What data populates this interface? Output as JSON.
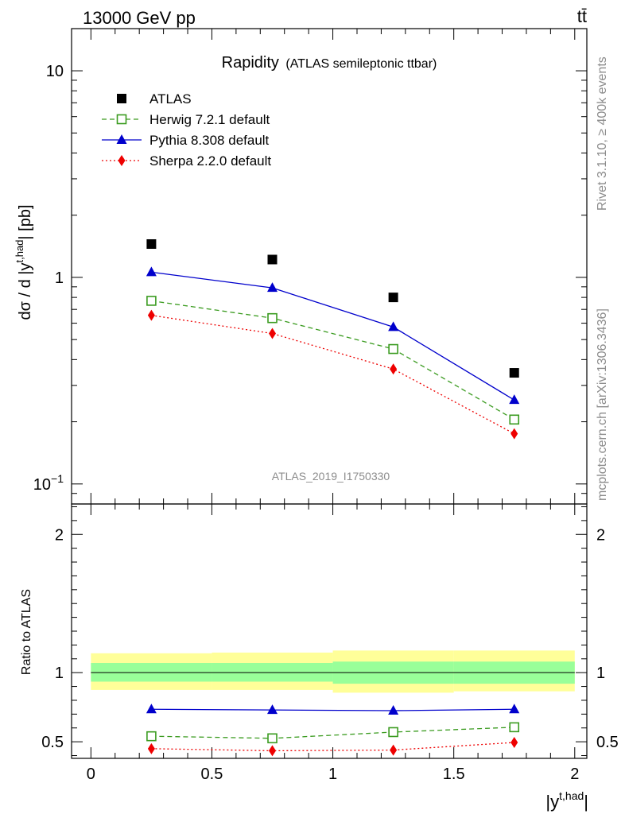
{
  "header": {
    "left": "13000 GeV pp",
    "right": "tt̄"
  },
  "side_labels": {
    "rivet": "Rivet 3.1.10, ≥ 400k events",
    "mcplots": "mcplots.cern.ch [arXiv:1306.3436]"
  },
  "watermark": "ATLAS_2019_I1750330",
  "chart_data": [
    {
      "type": "scatter",
      "title_main": "Rapidity",
      "title_sub": "(ATLAS semileptonic ttbar)",
      "ylabel": "dσ / d |y^{t,had}| [pb]",
      "yscale": "log",
      "ylim": [
        0.08,
        16
      ],
      "yticks": [
        {
          "value": 0.1,
          "base": "10",
          "exp": "−1"
        },
        {
          "value": 1,
          "label": "1"
        },
        {
          "value": 10,
          "label": "10"
        }
      ],
      "x": [
        0.25,
        0.75,
        1.25,
        1.75
      ],
      "series": [
        {
          "name": "ATLAS",
          "marker": "square-filled",
          "color": "#000000",
          "line": "none",
          "values": [
            1.45,
            1.22,
            0.8,
            0.345
          ]
        },
        {
          "name": "Herwig 7.2.1 default",
          "marker": "square-open",
          "color": "#3a9b1f",
          "line": "dashed",
          "values": [
            0.77,
            0.635,
            0.45,
            0.205
          ]
        },
        {
          "name": "Pythia 8.308 default",
          "marker": "triangle",
          "color": "#0000cc",
          "line": "solid",
          "values": [
            1.06,
            0.89,
            0.575,
            0.255
          ]
        },
        {
          "name": "Sherpa 2.2.0 default",
          "marker": "diamond",
          "color": "#ee0000",
          "line": "dotted",
          "values": [
            0.655,
            0.535,
            0.36,
            0.175
          ]
        }
      ],
      "legend_position": "top-left"
    },
    {
      "type": "line",
      "ylabel": "Ratio to ATLAS",
      "xlabel": "|y^{t,had}|",
      "xlim": [
        -0.08,
        2.05
      ],
      "ylim": [
        0.38,
        2.22
      ],
      "xticks": [
        "0",
        "0.5",
        "1",
        "1.5",
        "2"
      ],
      "xtick_values": [
        0,
        0.5,
        1,
        1.5,
        2
      ],
      "yticks": [
        "0.5",
        "1",
        "2"
      ],
      "ytick_values": [
        0.5,
        1,
        2
      ],
      "bands": {
        "bins": [
          [
            0,
            0.5
          ],
          [
            0.5,
            1
          ],
          [
            1,
            1.5
          ],
          [
            1.5,
            2
          ]
        ],
        "inner": [
          [
            0.935,
            1.07
          ],
          [
            0.935,
            1.07
          ],
          [
            0.92,
            1.08
          ],
          [
            0.92,
            1.08
          ]
        ],
        "outer": [
          [
            0.875,
            1.14
          ],
          [
            0.875,
            1.145
          ],
          [
            0.855,
            1.16
          ],
          [
            0.865,
            1.16
          ]
        ],
        "inner_color": "#99ff99",
        "outer_color": "#ffff99"
      },
      "x": [
        0.25,
        0.75,
        1.25,
        1.75
      ],
      "series": [
        {
          "name": "Herwig 7.2.1 default",
          "values": [
            0.54,
            0.525,
            0.57,
            0.605
          ]
        },
        {
          "name": "Pythia 8.308 default",
          "values": [
            0.735,
            0.73,
            0.725,
            0.735
          ]
        },
        {
          "name": "Sherpa 2.2.0 default",
          "values": [
            0.45,
            0.435,
            0.44,
            0.495
          ]
        }
      ]
    }
  ]
}
